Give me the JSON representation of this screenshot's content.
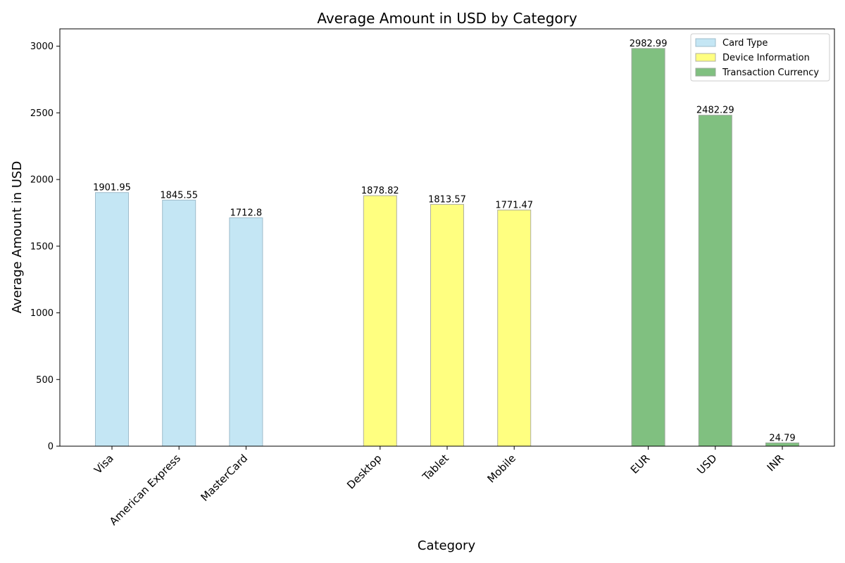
{
  "chart_data": {
    "type": "bar",
    "title": "Average Amount in USD by Category",
    "xlabel": "Category",
    "ylabel": "Average Amount in USD",
    "ylim": [
      0,
      3130
    ],
    "yticks": [
      0,
      500,
      1000,
      1500,
      2000,
      2500,
      3000
    ],
    "legend_position": "top-right",
    "grid": false,
    "groups": [
      {
        "name": "Card Type",
        "color": "#c4e6f4",
        "edge": "#9fbccb",
        "categories": [
          "Visa",
          "American Express",
          "MasterCard"
        ],
        "values": [
          1901.95,
          1845.55,
          1712.8
        ],
        "labels": [
          "1901.95",
          "1845.55",
          "1712.8"
        ]
      },
      {
        "name": "Device Information",
        "color": "#ffff80",
        "edge": "#b0b0a0",
        "categories": [
          "Desktop",
          "Tablet",
          "Mobile"
        ],
        "values": [
          1878.82,
          1813.57,
          1771.47
        ],
        "labels": [
          "1878.82",
          "1813.57",
          "1771.47"
        ]
      },
      {
        "name": "Transaction Currency",
        "color": "#80c080",
        "edge": "#9aa89a",
        "categories": [
          "EUR",
          "USD",
          "INR"
        ],
        "values": [
          2982.99,
          2482.29,
          24.79
        ],
        "labels": [
          "2982.99",
          "2482.29",
          "24.79"
        ]
      }
    ]
  }
}
